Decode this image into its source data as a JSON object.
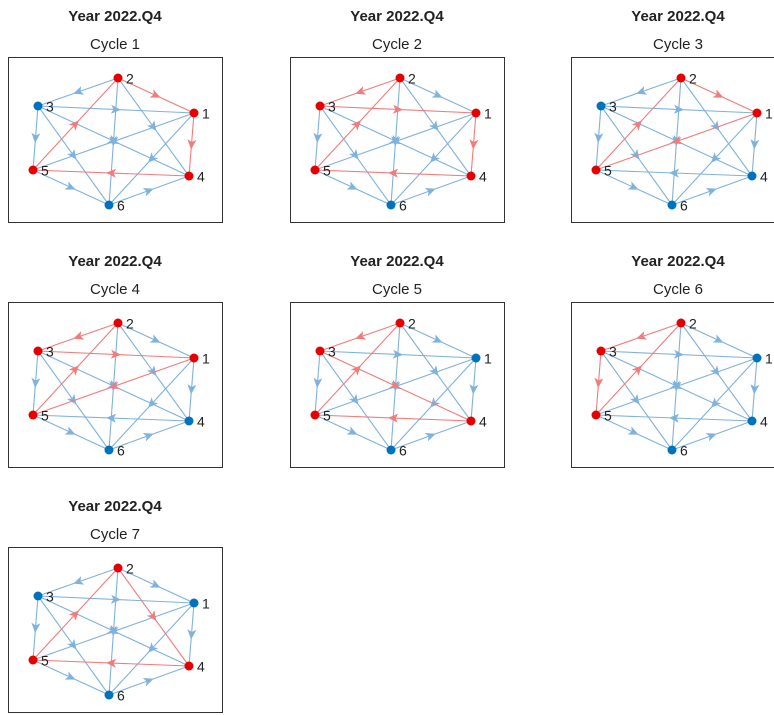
{
  "nodes": [
    {
      "label": "1"
    },
    {
      "label": "2"
    },
    {
      "label": "3"
    },
    {
      "label": "4"
    },
    {
      "label": "5"
    },
    {
      "label": "6"
    }
  ],
  "edges": [
    [
      "2",
      "1"
    ],
    [
      "2",
      "3"
    ],
    [
      "2",
      "4"
    ],
    [
      "2",
      "6"
    ],
    [
      "1",
      "4"
    ],
    [
      "1",
      "5"
    ],
    [
      "1",
      "6"
    ],
    [
      "3",
      "1"
    ],
    [
      "3",
      "4"
    ],
    [
      "3",
      "5"
    ],
    [
      "3",
      "6"
    ],
    [
      "4",
      "5"
    ],
    [
      "5",
      "2"
    ],
    [
      "5",
      "6"
    ],
    [
      "6",
      "4"
    ]
  ],
  "panels": [
    {
      "title": "Year 2022.Q4",
      "subtitle": "Cycle 1",
      "cycle": [
        "2",
        "1",
        "4",
        "5"
      ]
    },
    {
      "title": "Year 2022.Q4",
      "subtitle": "Cycle 2",
      "cycle": [
        "2",
        "3",
        "1",
        "4",
        "5"
      ]
    },
    {
      "title": "Year 2022.Q4",
      "subtitle": "Cycle 3",
      "cycle": [
        "2",
        "1",
        "5"
      ]
    },
    {
      "title": "Year 2022.Q4",
      "subtitle": "Cycle 4",
      "cycle": [
        "2",
        "3",
        "1",
        "5"
      ]
    },
    {
      "title": "Year 2022.Q4",
      "subtitle": "Cycle 5",
      "cycle": [
        "2",
        "3",
        "4",
        "5"
      ]
    },
    {
      "title": "Year 2022.Q4",
      "subtitle": "Cycle 6",
      "cycle": [
        "2",
        "3",
        "5"
      ]
    },
    {
      "title": "Year 2022.Q4",
      "subtitle": "Cycle 7",
      "cycle": [
        "2",
        "4",
        "5"
      ]
    }
  ]
}
